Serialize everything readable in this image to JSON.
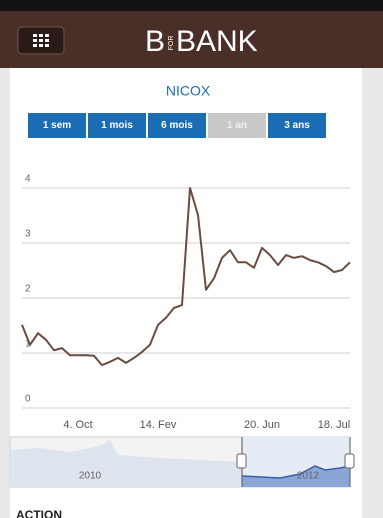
{
  "header": {
    "logo": [
      "B",
      "FOR",
      "BANK"
    ]
  },
  "title": "NICOX",
  "periods": {
    "buttons": [
      "1 sem",
      "1 mois",
      "6 mois",
      "1 an",
      "3 ans"
    ],
    "selected": 3
  },
  "chart_data": {
    "type": "line",
    "categories": [
      null,
      null,
      null,
      null,
      null,
      null,
      null,
      "4. Oct",
      null,
      null,
      null,
      null,
      null,
      null,
      null,
      null,
      null,
      "14. Fev",
      null,
      null,
      null,
      null,
      null,
      null,
      null,
      null,
      null,
      null,
      null,
      null,
      "20. Jun",
      null,
      null,
      null,
      null,
      null,
      null,
      null,
      null,
      "18. Jul",
      null,
      null
    ],
    "values": [
      1.51,
      1.15,
      1.36,
      1.24,
      1.05,
      1.09,
      0.96,
      0.96,
      0.96,
      0.95,
      0.78,
      0.84,
      0.91,
      0.82,
      0.91,
      1.02,
      1.15,
      1.51,
      1.64,
      1.82,
      1.87,
      4.0,
      3.51,
      2.15,
      2.36,
      2.73,
      2.87,
      2.65,
      2.65,
      2.55,
      2.91,
      2.78,
      2.6,
      2.78,
      2.73,
      2.76,
      2.69,
      2.65,
      2.58,
      2.47,
      2.51,
      2.65
    ],
    "color": "#6b4c43",
    "ylim": [
      0,
      4.4
    ],
    "yticks": [
      0,
      1,
      2,
      3,
      4
    ],
    "grid": true
  },
  "navigator": {
    "labels": [
      "2010",
      "2012"
    ]
  },
  "section": "ACTION"
}
